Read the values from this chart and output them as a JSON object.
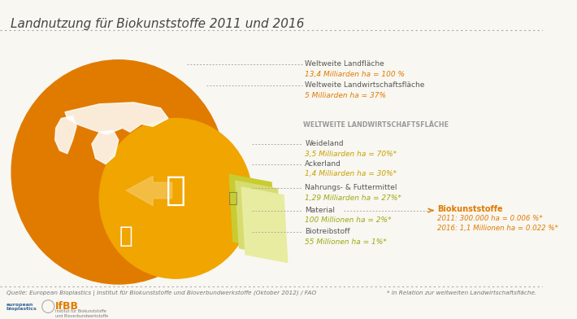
{
  "title": "Landnutzung für Biokunststoffe 2011 und 2016",
  "bg_color": "#f8f7f2",
  "orange_dark": "#e07b00",
  "orange_mid": "#f0a500",
  "orange_light": "#f5b800",
  "green1": "#c8cc30",
  "green2": "#b8c020",
  "green3": "#d8dc80",
  "text_dark": "#555555",
  "text_orange": "#e07b00",
  "text_yellow": "#c8a000",
  "text_green": "#9aaa10",
  "labels": [
    {
      "name": "Weltweite Landfläche",
      "value": "13,4 Milliarden ha = 100 %",
      "color": "#e07b00"
    },
    {
      "name": "Weltweite Landwirtschaftsfläche",
      "value": "5 Milliarden ha = 37%",
      "color": "#e07b00"
    },
    {
      "name": "Weideland",
      "value": "3,5 Milliarden ha = 70%*",
      "color": "#c8a000"
    },
    {
      "name": "Ackerland",
      "value": "1,4 Milliarden ha = 30%*",
      "color": "#c8a000"
    },
    {
      "name": "Nahrungs- & Futtermittel",
      "value": "1,29 Milliarden ha = 27%*",
      "color": "#9aaa10"
    },
    {
      "name": "Material",
      "value": "100 Millionen ha = 2%*",
      "color": "#9aaa10"
    },
    {
      "name": "Biotreibstoff",
      "value": "55 Millionen ha = 1%*",
      "color": "#9aaa10"
    }
  ],
  "biokunststoffe_label": "Biokunststoffe",
  "biokunststoffe_2011": "2011: 300.000 ha = 0.006 %*",
  "biokunststoffe_2016": "2016: 1,1 Millionen ha = 0.022 %*",
  "weltweite_header": "WELTWEITE LANDWIRTSCHAFTSFLÄCHE",
  "source": "Quelle: European Bioplastics | Institut für Biokunststoffe und Bioverbundwerkstoffe (Oktober 2012) / FAO",
  "footnote": "* in Relation zur weltweiten Landwirtschaftsfläche.",
  "circle_big_color": "#e07b00",
  "circle_mid_color": "#f0a500",
  "arrow_color": "#f5c860"
}
